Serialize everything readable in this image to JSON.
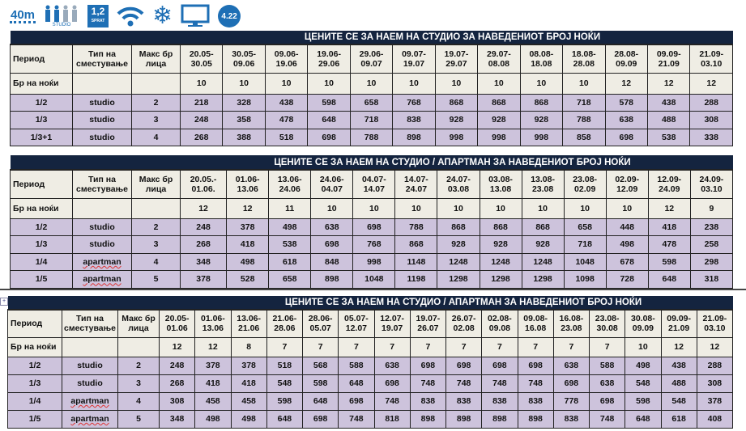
{
  "icons": {
    "area": "40m",
    "people_label": "STUDIO",
    "floor": "1,2",
    "floor_label": "SPRAT",
    "rating": "4.22",
    "items": [
      "area-icon",
      "people-icon",
      "floor-icon",
      "wifi-icon",
      "air-conditioning-icon",
      "tv-icon",
      "rating-badge"
    ]
  },
  "colors": {
    "title_bg": "#14243f",
    "header_bg": "#efede4",
    "price_bg": "#cdc3dc",
    "icon_blue": "#1e6fb5"
  },
  "headers": {
    "period": "Период",
    "type": "Тип на сместување",
    "max": "Макс бр лица",
    "nights": "Бр на ноќи"
  },
  "tables": [
    {
      "title": "ЦЕНИТЕ СЕ ЗА НАЕМ НА СТУДИО ЗА НАВЕДЕНИОТ БРОЈ НОЌИ",
      "periods": [
        "20.05- 30.05",
        "30.05- 09.06",
        "09.06- 19.06",
        "19.06- 29.06",
        "29.06- 09.07",
        "09.07- 19.07",
        "19.07- 29.07",
        "29.07- 08.08",
        "08.08- 18.08",
        "18.08- 28.08",
        "28.08- 09.09",
        "09.09- 21.09",
        "21.09- 03.10"
      ],
      "nights": [
        "10",
        "10",
        "10",
        "10",
        "10",
        "10",
        "10",
        "10",
        "10",
        "10",
        "12",
        "12",
        "12"
      ],
      "rows": [
        {
          "unit": "1/2",
          "type": "studio",
          "max": "2",
          "prices": [
            "218",
            "328",
            "438",
            "598",
            "658",
            "768",
            "868",
            "868",
            "868",
            "718",
            "578",
            "438",
            "288"
          ]
        },
        {
          "unit": "1/3",
          "type": "studio",
          "max": "3",
          "prices": [
            "248",
            "358",
            "478",
            "648",
            "718",
            "838",
            "928",
            "928",
            "928",
            "788",
            "638",
            "488",
            "308"
          ]
        },
        {
          "unit": "1/3+1",
          "type": "studio",
          "max": "4",
          "prices": [
            "268",
            "388",
            "518",
            "698",
            "788",
            "898",
            "998",
            "998",
            "998",
            "858",
            "698",
            "538",
            "338"
          ]
        }
      ]
    },
    {
      "title": "ЦЕНИТЕ СЕ ЗА НАЕМ НА СТУДИО / АПАРТМАН ЗА НАВЕДЕНИОТ БРОЈ НОЌИ",
      "periods": [
        "20.05.- 01.06.",
        "01.06- 13.06",
        "13.06- 24.06",
        "24.06- 04.07",
        "04.07- 14.07",
        "14.07- 24.07",
        "24.07- 03.08",
        "03.08- 13.08",
        "13.08- 23.08",
        "23.08- 02.09",
        "02.09- 12.09",
        "12.09- 24.09",
        "24.09- 03.10"
      ],
      "nights": [
        "12",
        "12",
        "11",
        "10",
        "10",
        "10",
        "10",
        "10",
        "10",
        "10",
        "10",
        "12",
        "9"
      ],
      "rows": [
        {
          "unit": "1/2",
          "type": "studio",
          "max": "2",
          "prices": [
            "248",
            "378",
            "498",
            "638",
            "698",
            "788",
            "868",
            "868",
            "868",
            "658",
            "448",
            "418",
            "238"
          ]
        },
        {
          "unit": "1/3",
          "type": "studio",
          "max": "3",
          "prices": [
            "268",
            "418",
            "538",
            "698",
            "768",
            "868",
            "928",
            "928",
            "928",
            "718",
            "498",
            "478",
            "258"
          ]
        },
        {
          "unit": "1/4",
          "type": "apartman",
          "max": "4",
          "prices": [
            "348",
            "498",
            "618",
            "848",
            "998",
            "1148",
            "1248",
            "1248",
            "1248",
            "1048",
            "678",
            "598",
            "298"
          ]
        },
        {
          "unit": "1/5",
          "type": "apartman",
          "max": "5",
          "prices": [
            "378",
            "528",
            "658",
            "898",
            "1048",
            "1198",
            "1298",
            "1298",
            "1298",
            "1098",
            "728",
            "648",
            "318"
          ]
        }
      ]
    },
    {
      "title": "ЦЕНИТЕ СЕ ЗА НАЕМ НА СТУДИО / АПАРТМАН ЗА НАВЕДЕНИОТ БРОЈ НОЌИ",
      "periods": [
        "20.05- 01.06",
        "01.06- 13.06",
        "13.06- 21.06",
        "21.06- 28.06",
        "28.06- 05.07",
        "05.07- 12.07",
        "12.07- 19.07",
        "19.07- 26.07",
        "26.07- 02.08",
        "02.08- 09.08",
        "09.08- 16.08",
        "16.08- 23.08",
        "23.08- 30.08",
        "30.08- 09.09",
        "09.09- 21.09",
        "21.09- 03.10"
      ],
      "nights": [
        "12",
        "12",
        "8",
        "7",
        "7",
        "7",
        "7",
        "7",
        "7",
        "7",
        "7",
        "7",
        "7",
        "10",
        "12",
        "12"
      ],
      "rows": [
        {
          "unit": "1/2",
          "type": "studio",
          "max": "2",
          "prices": [
            "248",
            "378",
            "378",
            "518",
            "568",
            "588",
            "638",
            "698",
            "698",
            "698",
            "698",
            "638",
            "588",
            "498",
            "438",
            "288"
          ]
        },
        {
          "unit": "1/3",
          "type": "studio",
          "max": "3",
          "prices": [
            "268",
            "418",
            "418",
            "548",
            "598",
            "648",
            "698",
            "748",
            "748",
            "748",
            "748",
            "698",
            "638",
            "548",
            "488",
            "308"
          ]
        },
        {
          "unit": "1/4",
          "type": "apartman",
          "max": "4",
          "prices": [
            "308",
            "458",
            "458",
            "598",
            "648",
            "698",
            "748",
            "838",
            "838",
            "838",
            "838",
            "778",
            "698",
            "598",
            "548",
            "378"
          ]
        },
        {
          "unit": "1/5",
          "type": "apartman",
          "max": "5",
          "prices": [
            "348",
            "498",
            "498",
            "648",
            "698",
            "748",
            "818",
            "898",
            "898",
            "898",
            "898",
            "838",
            "748",
            "648",
            "618",
            "408"
          ]
        }
      ]
    }
  ]
}
